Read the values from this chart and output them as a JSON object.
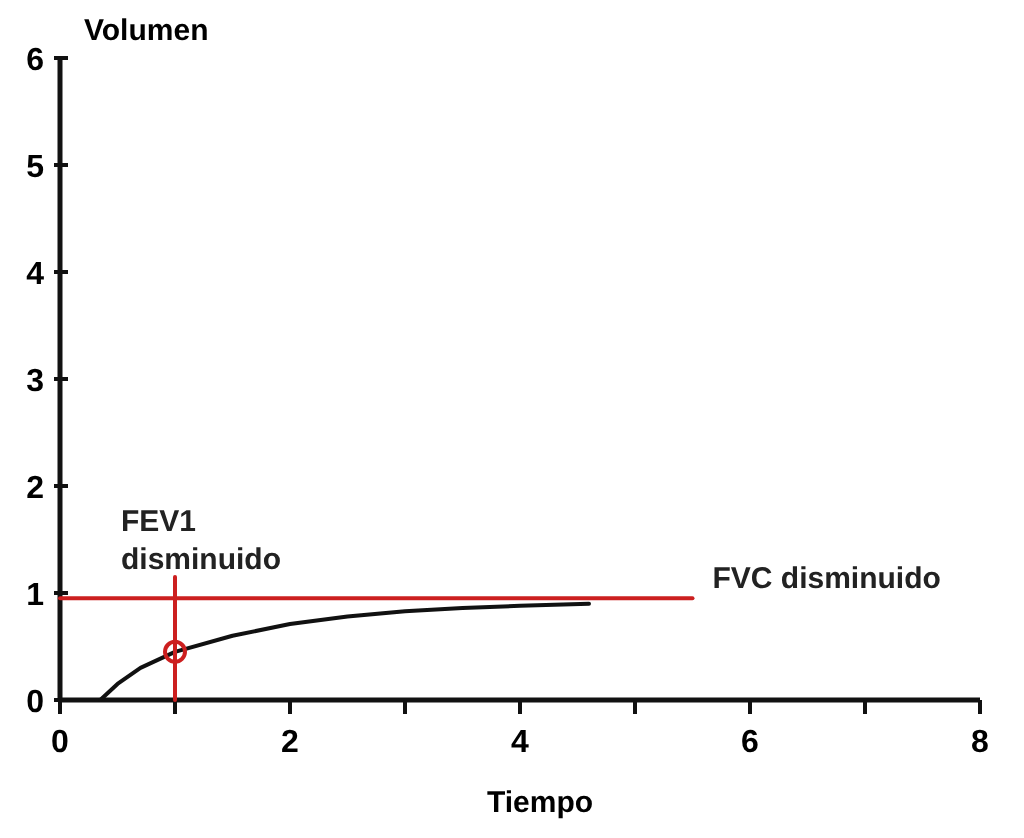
{
  "chart_data": {
    "type": "line",
    "xlabel": "Tiempo",
    "ylabel": "Volumen",
    "xlim": [
      0,
      8
    ],
    "ylim": [
      0,
      6
    ],
    "xticks": [
      0,
      {
        "value": 1,
        "label": null
      },
      2,
      {
        "value": 3,
        "label": null
      },
      4,
      {
        "value": 5,
        "label": null
      },
      6,
      {
        "value": 7,
        "label": null
      },
      8
    ],
    "yticks": [
      0,
      1,
      2,
      3,
      4,
      5,
      6
    ],
    "grid": false,
    "line_style": "solid",
    "series": [
      {
        "color": "#111111",
        "x": [
          0.35,
          0.5,
          0.7,
          1,
          1.5,
          2,
          2.5,
          3,
          3.5,
          4,
          4.6
        ],
        "values": [
          0,
          0.15,
          0.3,
          0.45,
          0.6,
          0.71,
          0.78,
          0.83,
          0.86,
          0.88,
          0.9
        ]
      },
      {
        "color": "#cc1f1f",
        "x": [
          0,
          5.5
        ],
        "values": [
          0.95,
          0.95
        ]
      },
      {
        "color": "#cc1f1f",
        "x": [
          1,
          1
        ],
        "values": [
          0,
          1.15
        ]
      },
      {
        "type": "scatter",
        "marker": "circle",
        "color": "#cc1f1f",
        "x": [
          1
        ],
        "values": [
          0.45
        ]
      }
    ],
    "annotations": [
      {
        "text": "FEV1\ndisminuido",
        "x": 1,
        "y": 1.15
      },
      {
        "text": "FVC disminuido",
        "x": 5.5,
        "y": 0.95
      }
    ]
  }
}
